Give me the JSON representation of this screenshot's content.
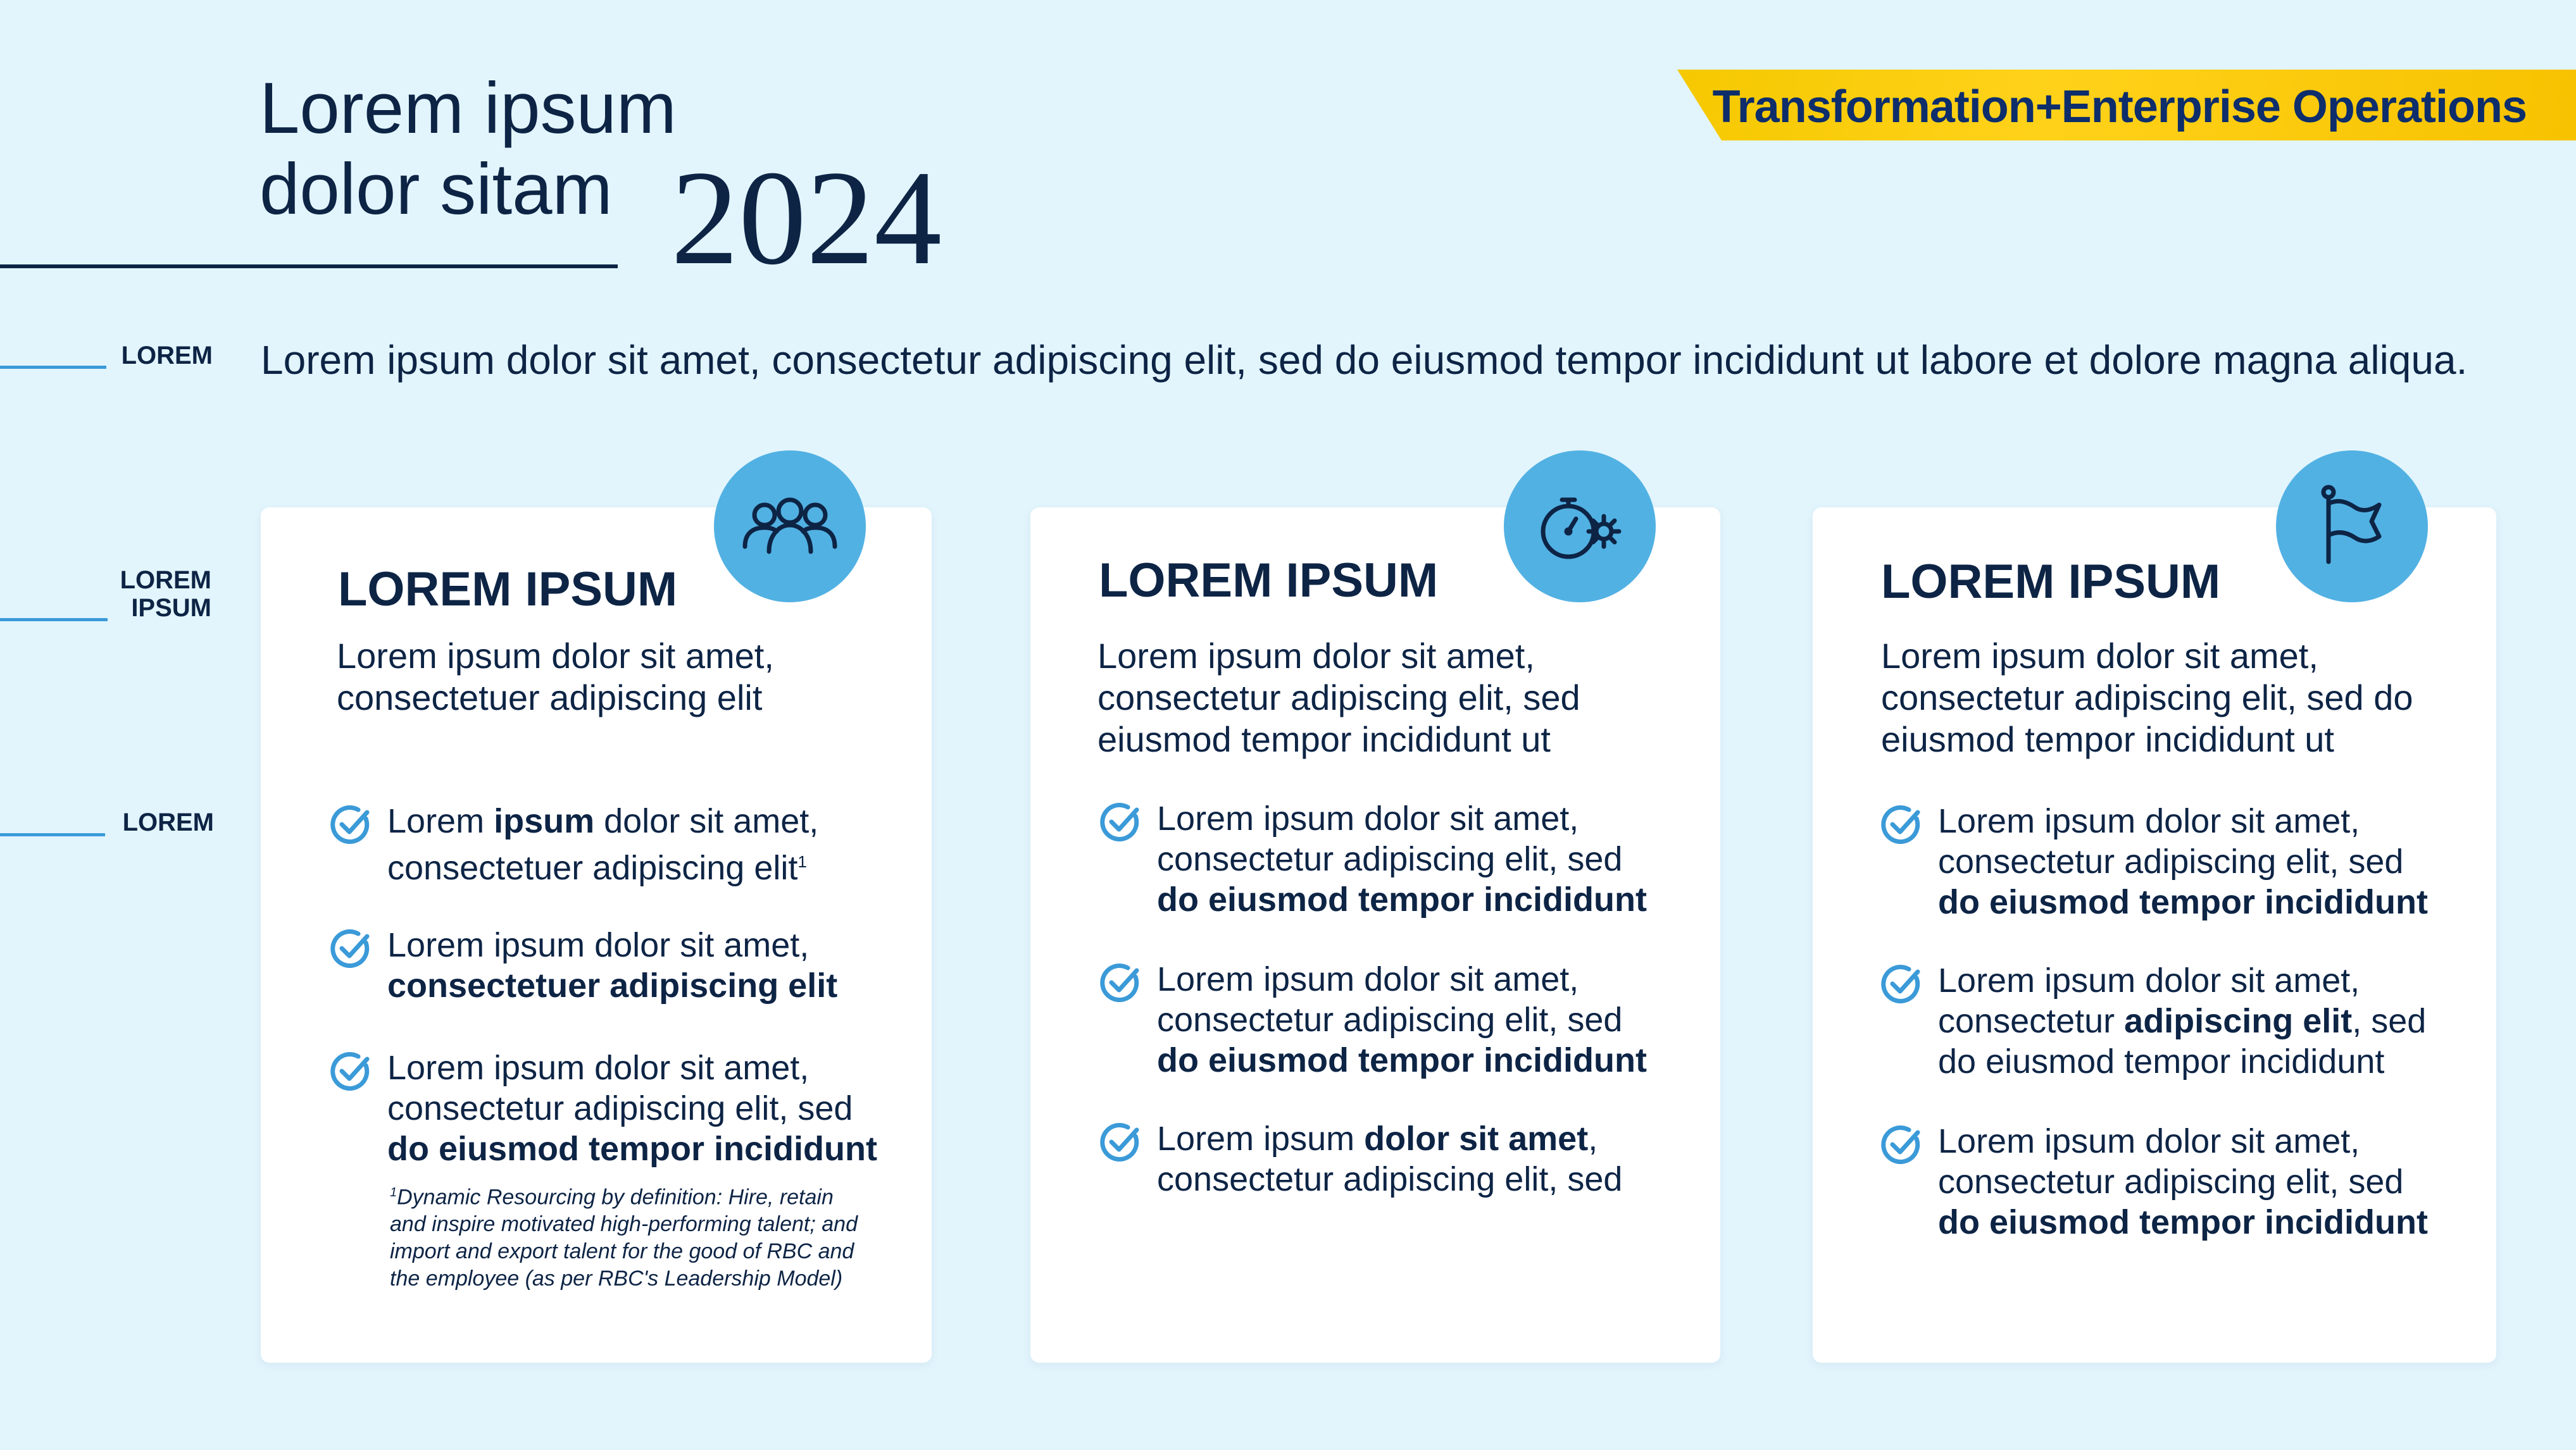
{
  "header": {
    "title_line1": "Lorem ipsum",
    "title_line2": "dolor sitam",
    "year": "2024",
    "banner_text": "Transformation+Enterprise Operations"
  },
  "side_labels": {
    "label1": "LOREM",
    "label2_line1": "LOREM",
    "label2_line2": "IPSUM",
    "label3": "LOREM"
  },
  "intro": "Lorem ipsum dolor sit amet, consectetur adipiscing elit, sed do eiusmod tempor incididunt ut labore et dolore magna aliqua.",
  "colors": {
    "background": "#e2f5fd",
    "navy": "#0d2445",
    "accent_blue": "#52b1e3",
    "check_blue": "#3b9ad8",
    "banner_yellow": "#ffd21a"
  },
  "cards": [
    {
      "icon": "people-group-icon",
      "title": "LOREM IPSUM",
      "subtitle": "Lorem ipsum dolor sit amet, consectetuer adipiscing elit",
      "items": [
        {
          "a": "Lorem ",
          "b": "ipsum",
          "c": " dolor sit amet, consectetuer adipiscing elit",
          "sup": "1"
        },
        {
          "a": "Lorem ipsum dolor sit amet, ",
          "b": "consectetuer adipiscing elit",
          "c": ""
        },
        {
          "a": "Lorem ipsum dolor sit amet, consectetur adipiscing elit, sed ",
          "b": "do eiusmod tempor incididunt",
          "c": ""
        }
      ],
      "footnote": "Dynamic Resourcing by definition: Hire, retain and inspire motivated high-performing talent; and import and export talent for the good of RBC and the employee (as per RBC's Leadership Model)",
      "footnote_mark": "1"
    },
    {
      "icon": "stopwatch-gear-icon",
      "title": "LOREM IPSUM",
      "subtitle": "Lorem ipsum dolor sit amet, consectetur adipiscing elit, sed eiusmod tempor incididunt ut",
      "items": [
        {
          "a": "Lorem ipsum dolor sit amet, consectetur adipiscing elit, sed ",
          "b": "do eiusmod tempor incididunt",
          "c": ""
        },
        {
          "a": "Lorem ipsum dolor sit amet, consectetur adipiscing elit, sed ",
          "b": "do eiusmod tempor incididunt",
          "c": ""
        },
        {
          "a": "Lorem ipsum ",
          "b": "dolor sit amet",
          "c": ", consectetur adipiscing elit, sed"
        }
      ]
    },
    {
      "icon": "flag-icon",
      "title": "LOREM IPSUM",
      "subtitle": "Lorem ipsum dolor sit amet, consectetur adipiscing elit, sed do eiusmod tempor incididunt ut",
      "items": [
        {
          "a": "Lorem ipsum dolor sit amet, consectetur adipiscing elit, sed ",
          "b": "do eiusmod tempor incididunt",
          "c": ""
        },
        {
          "a": "Lorem ipsum dolor sit amet, consectetur ",
          "b": "adipiscing elit",
          "c": ", sed do eiusmod tempor incididunt"
        },
        {
          "a": "Lorem ipsum dolor sit amet, consectetur adipiscing elit, sed ",
          "b": "do eiusmod tempor incididunt",
          "c": ""
        }
      ]
    }
  ]
}
